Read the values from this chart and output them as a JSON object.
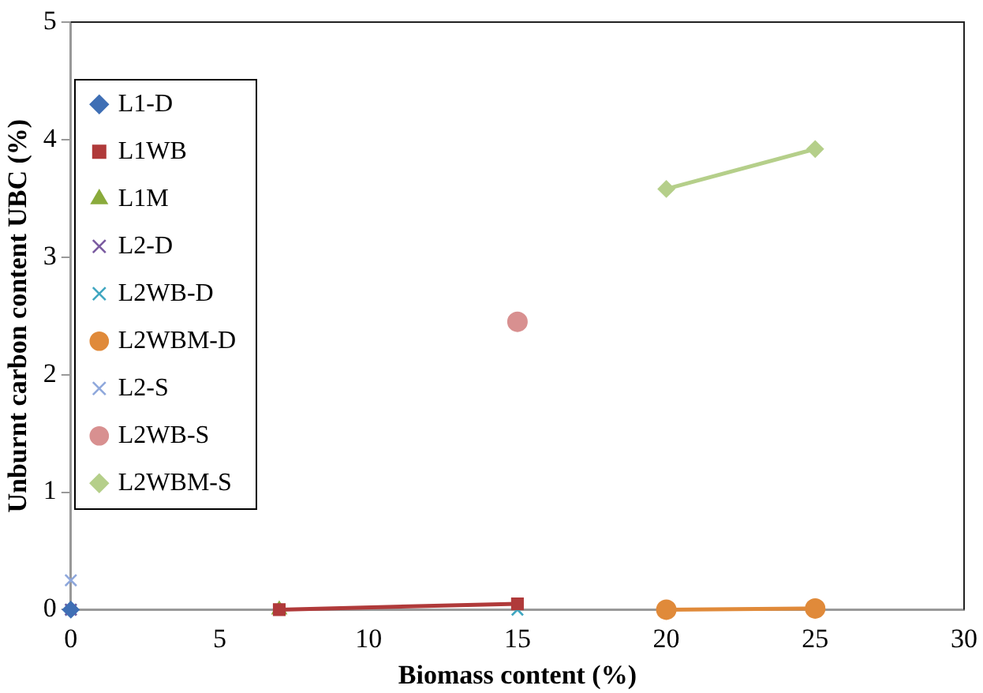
{
  "chart_data": {
    "type": "scatter",
    "xlabel": "Biomass content (%)",
    "ylabel": "Unburnt carbon content UBC (%)",
    "xlim": [
      0,
      30
    ],
    "xticks": [
      0,
      5,
      10,
      15,
      20,
      25,
      30
    ],
    "ylim": [
      0,
      5
    ],
    "yticks": [
      0,
      1,
      2,
      3,
      4,
      5
    ],
    "grid": false,
    "legend": "top left",
    "series": [
      {
        "name": "L1-D",
        "marker": "diamond",
        "color": "#3f6fb5",
        "x": [
          0
        ],
        "values": [
          0
        ]
      },
      {
        "name": "L1WB",
        "type": "line",
        "marker": "square",
        "color": "#b03a3a",
        "x": [
          7,
          15
        ],
        "values": [
          0,
          0.05
        ]
      },
      {
        "name": "L1M",
        "marker": "triangle",
        "color": "#8aab3c",
        "x": [
          7
        ],
        "values": [
          0
        ]
      },
      {
        "name": "L2-D",
        "marker": "cross",
        "color": "#7a5aa0",
        "x": [
          0
        ],
        "values": [
          0
        ]
      },
      {
        "name": "L2WB-D",
        "marker": "cross",
        "color": "#3fa6c0",
        "x": [
          0,
          15
        ],
        "values": [
          0,
          0
        ]
      },
      {
        "name": "L2WBM-D",
        "type": "line",
        "marker": "circle",
        "color": "#e08a3a",
        "x": [
          20,
          25
        ],
        "values": [
          0,
          0.01
        ]
      },
      {
        "name": "L2-S",
        "marker": "cross",
        "color": "#8fa8dc",
        "x": [
          0
        ],
        "values": [
          0.25
        ]
      },
      {
        "name": "L2WB-S",
        "marker": "circle",
        "color": "#d89090",
        "x": [
          15
        ],
        "values": [
          2.45
        ]
      },
      {
        "name": "L2WBM-S",
        "type": "line",
        "marker": "diamond",
        "color": "#b5cf8a",
        "x": [
          20,
          25
        ],
        "values": [
          3.58,
          3.92
        ]
      }
    ]
  }
}
